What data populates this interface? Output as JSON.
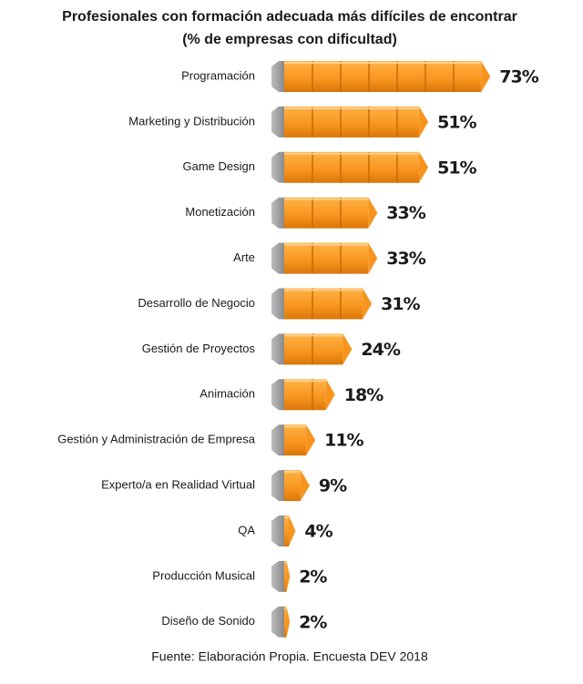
{
  "chart_data": {
    "type": "bar",
    "orientation": "horizontal",
    "title": "Profesionales con formación adecuada más difíciles de encontrar",
    "subtitle": "(% de empresas con dificultad)",
    "categories": [
      "Programación",
      "Marketing y Distribución",
      "Game Design",
      "Monetización",
      "Arte",
      "Desarrollo de Negocio",
      "Gestión de Proyectos",
      "Animación",
      "Gestión y Administración de Empresa",
      "Experto/a en Realidad Virtual",
      "QA",
      "Producción Musical",
      "Diseño de Sonido"
    ],
    "values": [
      73,
      51,
      51,
      33,
      33,
      31,
      24,
      18,
      11,
      9,
      4,
      2,
      2
    ],
    "value_labels": [
      "73%",
      "51%",
      "51%",
      "33%",
      "33%",
      "31%",
      "24%",
      "18%",
      "11%",
      "9%",
      "4%",
      "2%",
      "2%"
    ],
    "color": "#f7941d",
    "source": "Fuente: Elaboración Propia. Encuesta DEV 2018"
  }
}
